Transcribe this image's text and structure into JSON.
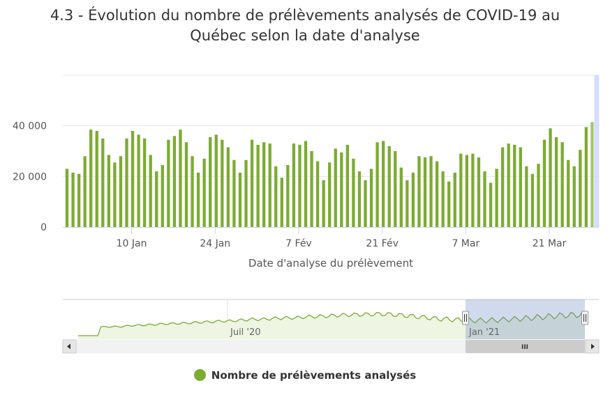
{
  "chart_data": {
    "type": "bar",
    "title_line1": "4.3 - Évolution du nombre de prélèvements analysés de COVID-19 au",
    "title_line2": "Québec selon la date d'analyse",
    "xlabel": "Date d'analyse du prélèvement",
    "ylabel": "",
    "ylim": [
      0,
      60000
    ],
    "y_ticks": [
      {
        "value": 0,
        "label": "0"
      },
      {
        "value": 20000,
        "label": "20 000"
      },
      {
        "value": 40000,
        "label": "40 000"
      }
    ],
    "x_ticks": [
      {
        "index": 11,
        "label": "10 Jan"
      },
      {
        "index": 25,
        "label": "24 Jan"
      },
      {
        "index": 39,
        "label": "7 Fév"
      },
      {
        "index": 53,
        "label": "21 Fév"
      },
      {
        "index": 67,
        "label": "7 Mar"
      },
      {
        "index": 81,
        "label": "21 Mar"
      }
    ],
    "series": [
      {
        "name": "Nombre de prélèvements analysés",
        "color": "#7cab32",
        "values": [
          23000,
          21500,
          21000,
          28000,
          38500,
          38000,
          35000,
          28500,
          25500,
          28000,
          35000,
          38000,
          36500,
          35000,
          28500,
          22000,
          24500,
          34500,
          36000,
          38500,
          33500,
          28000,
          21500,
          27000,
          35500,
          36500,
          34500,
          31500,
          26500,
          21500,
          26500,
          34500,
          32500,
          33500,
          33000,
          24000,
          19500,
          24500,
          33000,
          32500,
          34000,
          30000,
          26000,
          18500,
          25500,
          31000,
          29500,
          32500,
          27000,
          22000,
          18500,
          23000,
          33500,
          34000,
          32000,
          30000,
          23500,
          18500,
          21500,
          28000,
          27500,
          28000,
          26000,
          22000,
          18000,
          21500,
          29000,
          28500,
          29000,
          27500,
          22000,
          17500,
          23000,
          31500,
          33000,
          32500,
          31500,
          24000,
          21000,
          25000,
          34500,
          39000,
          35500,
          33500,
          26500,
          24000,
          30500,
          39500,
          41500
        ]
      }
    ],
    "highlight_last": true,
    "navigator": {
      "labels": [
        "Juil '20",
        "Jan '21"
      ],
      "window": [
        0.7497,
        1.0
      ],
      "values": [
        0.52,
        0.52,
        0.53,
        0.56,
        0.57,
        0.57,
        0.58,
        0.61,
        0.62,
        0.63,
        0.64,
        0.66,
        0.67,
        0.68,
        0.69,
        0.7,
        0.72,
        0.73,
        0.74,
        0.76,
        0.76,
        0.78,
        0.8,
        0.82,
        0.82,
        0.83,
        0.85,
        0.86,
        0.87,
        0.87,
        0.9,
        0.91,
        0.92,
        0.93,
        0.95,
        0.96,
        0.97,
        0.98,
        0.98,
        0.99,
        1.0,
        0.99,
        0.97,
        0.95,
        0.93,
        0.9,
        0.88,
        0.85,
        0.83,
        0.82,
        0.8,
        0.79,
        0.78,
        0.78,
        0.78,
        0.79,
        0.8,
        0.82,
        0.83,
        0.85,
        0.87,
        0.89,
        0.91,
        0.93,
        0.95,
        0.96,
        0.97,
        0.98
      ]
    },
    "scrollbar": {
      "grip": "III"
    }
  },
  "legend_label": "Nombre de prélèvements analysés",
  "icons": {
    "left": "scroll-left-arrow",
    "right": "scroll-right-arrow"
  }
}
